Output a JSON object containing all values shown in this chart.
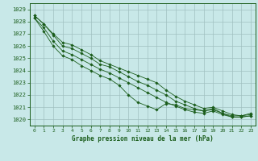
{
  "title": "Graphe pression niveau de la mer (hPa)",
  "background_color": "#c8e8e8",
  "grid_color": "#a0c0c0",
  "line_color": "#1a5c1a",
  "marker_color": "#1a5c1a",
  "xlim": [
    -0.5,
    23.5
  ],
  "ylim": [
    1019.5,
    1029.5
  ],
  "yticks": [
    1020,
    1021,
    1022,
    1023,
    1024,
    1025,
    1026,
    1027,
    1028,
    1029
  ],
  "xticks": [
    0,
    1,
    2,
    3,
    4,
    5,
    6,
    7,
    8,
    9,
    10,
    11,
    12,
    13,
    14,
    15,
    16,
    17,
    18,
    19,
    20,
    21,
    22,
    23
  ],
  "lines": [
    [
      1028.5,
      1027.8,
      1027.0,
      1026.3,
      1026.1,
      1025.7,
      1025.3,
      1024.8,
      1024.5,
      1024.2,
      1023.9,
      1023.6,
      1023.3,
      1023.0,
      1022.4,
      1021.9,
      1021.5,
      1021.2,
      1020.9,
      1021.0,
      1020.7,
      1020.4,
      1020.3,
      1020.5
    ],
    [
      1028.5,
      1027.8,
      1026.9,
      1026.0,
      1025.8,
      1025.4,
      1025.0,
      1024.5,
      1024.3,
      1023.9,
      1023.5,
      1023.1,
      1022.8,
      1022.4,
      1022.0,
      1021.5,
      1021.2,
      1020.9,
      1020.7,
      1020.8,
      1020.5,
      1020.3,
      1020.3,
      1020.4
    ],
    [
      1028.3,
      1027.5,
      1026.4,
      1025.6,
      1025.3,
      1024.9,
      1024.5,
      1024.1,
      1023.8,
      1023.4,
      1023.0,
      1022.6,
      1022.2,
      1021.8,
      1021.4,
      1021.1,
      1020.8,
      1020.6,
      1020.5,
      1020.7,
      1020.4,
      1020.2,
      1020.2,
      1020.3
    ],
    [
      1028.3,
      1027.2,
      1026.0,
      1025.2,
      1024.9,
      1024.4,
      1024.0,
      1023.6,
      1023.3,
      1022.8,
      1022.0,
      1021.4,
      1021.1,
      1020.8,
      1021.3,
      1021.2,
      1020.9,
      1020.8,
      1020.7,
      1020.9,
      1020.5,
      1020.2,
      1020.2,
      1020.3
    ]
  ]
}
